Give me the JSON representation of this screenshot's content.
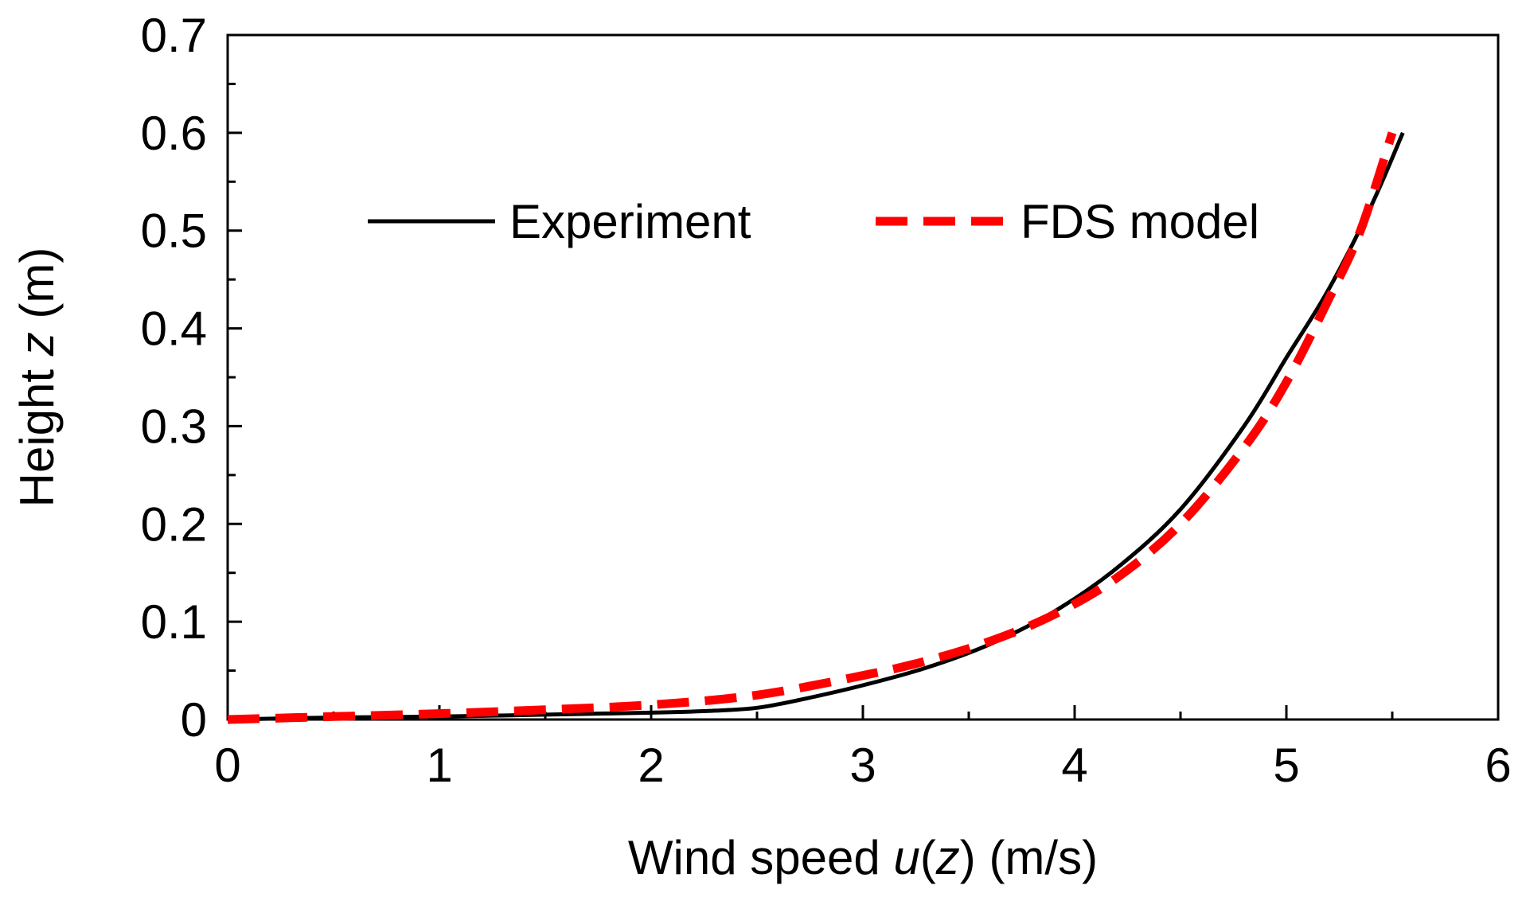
{
  "chart_data": {
    "type": "line",
    "title": "",
    "xlabel": {
      "prefix": "Wind speed ",
      "var": "u",
      "open": "(",
      "arg": "z",
      "close": ")",
      "suffix": " (m/s)"
    },
    "ylabel": {
      "prefix": "Height ",
      "var": "z",
      "suffix": " (m)"
    },
    "xlim": [
      0,
      6
    ],
    "ylim": [
      0,
      0.7
    ],
    "xticks": [
      "0",
      "1",
      "2",
      "3",
      "4",
      "5",
      "6"
    ],
    "yticks": [
      "0",
      "0.1",
      "0.2",
      "0.3",
      "0.4",
      "0.5",
      "0.6",
      "0.7"
    ],
    "grid": false,
    "legend": "top-center",
    "series": [
      {
        "name": "Experiment",
        "color": "#000000",
        "dash": "solid",
        "x": [
          0,
          0.5,
          1.0,
          1.5,
          2.0,
          2.3,
          2.5,
          2.7,
          3.0,
          3.3,
          3.6,
          3.9,
          4.2,
          4.5,
          4.8,
          5.0,
          5.2,
          5.4,
          5.55
        ],
        "y": [
          0,
          0.002,
          0.003,
          0.005,
          0.007,
          0.009,
          0.012,
          0.02,
          0.035,
          0.053,
          0.077,
          0.11,
          0.155,
          0.215,
          0.3,
          0.37,
          0.44,
          0.525,
          0.6
        ]
      },
      {
        "name": "FDS model",
        "color": "#ff0000",
        "dash": "dashed",
        "x": [
          0,
          0.5,
          1.0,
          1.5,
          2.0,
          2.5,
          3.0,
          3.3,
          3.6,
          3.9,
          4.2,
          4.5,
          4.8,
          5.0,
          5.2,
          5.35,
          5.5
        ],
        "y": [
          0,
          0.003,
          0.006,
          0.01,
          0.015,
          0.025,
          0.045,
          0.06,
          0.08,
          0.107,
          0.145,
          0.2,
          0.278,
          0.345,
          0.43,
          0.5,
          0.6
        ]
      }
    ]
  }
}
